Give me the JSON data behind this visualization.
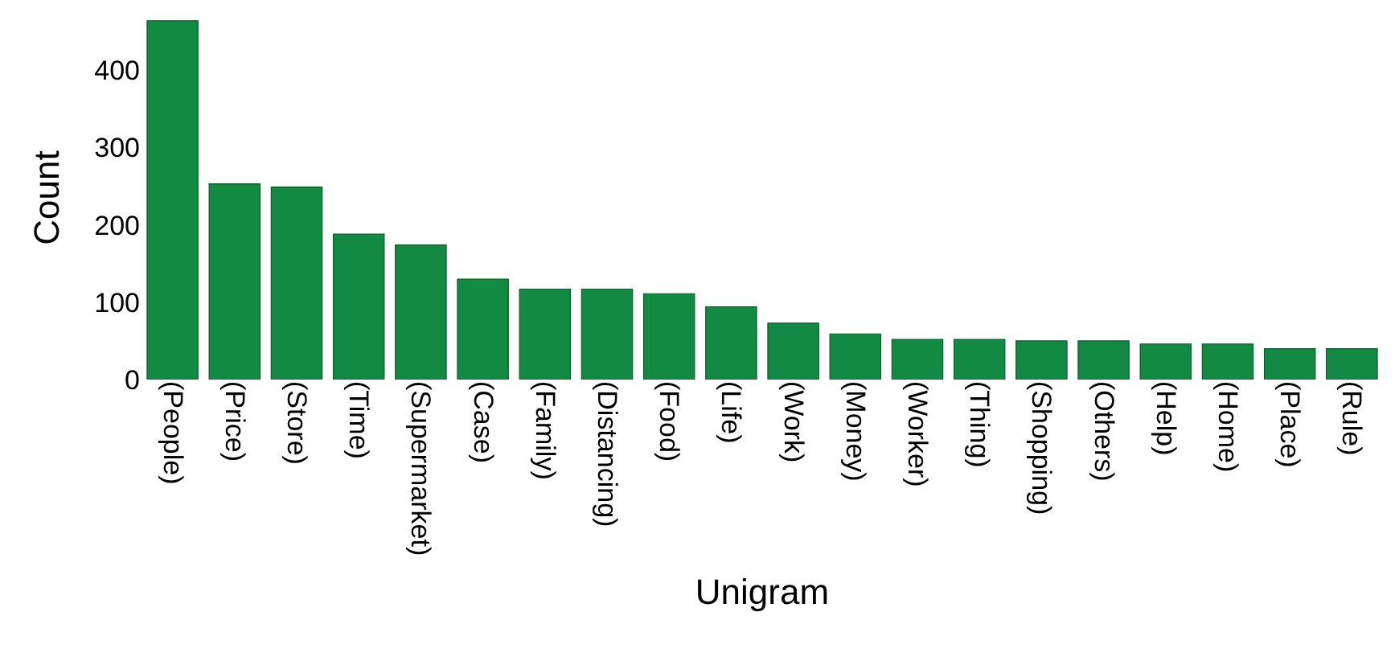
{
  "chart_data": {
    "type": "bar",
    "xlabel": "Unigram",
    "ylabel": "Count",
    "categories": [
      "(People)",
      "(Price)",
      "(Store)",
      "(Time)",
      "(Supermarket)",
      "(Case)",
      "(Family)",
      "(Distancing)",
      "(Food)",
      "(Life)",
      "(Work)",
      "(Money)",
      "(Worker)",
      "(Thing)",
      "(Shopping)",
      "(Others)",
      "(Help)",
      "(Home)",
      "(Place)",
      "(Rule)"
    ],
    "values": [
      464,
      253,
      249,
      188,
      174,
      130,
      117,
      117,
      111,
      94,
      73,
      59,
      52,
      52,
      50,
      50,
      46,
      46,
      40,
      40
    ],
    "color": "#138a43",
    "ylim": [
      0,
      470
    ],
    "yticks": [
      0,
      100,
      200,
      300,
      400
    ]
  }
}
